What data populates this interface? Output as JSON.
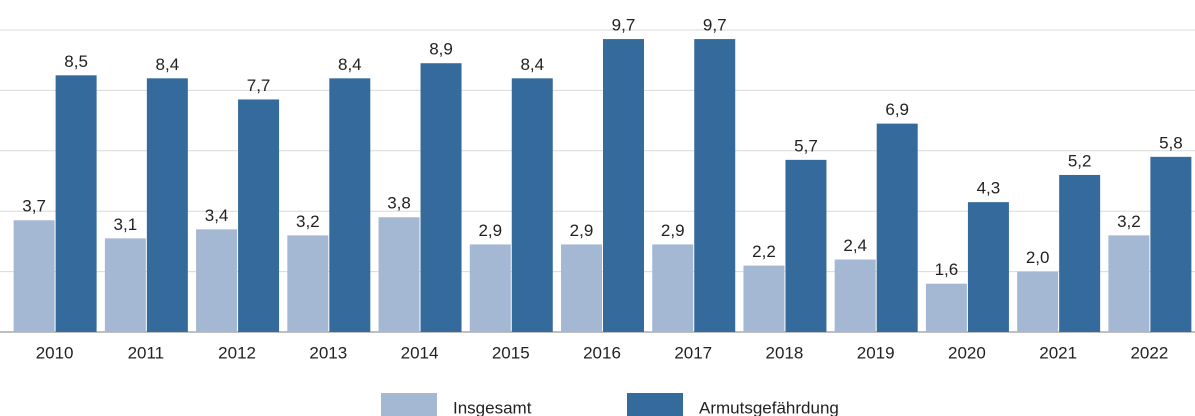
{
  "chart_data": {
    "type": "bar",
    "categories": [
      "2010",
      "2011",
      "2012",
      "2013",
      "2014",
      "2015",
      "2016",
      "2017",
      "2018",
      "2019",
      "2020",
      "2021",
      "2022"
    ],
    "series": [
      {
        "name": "Insgesamt",
        "color": "#a5b8d3",
        "values": [
          3.7,
          3.1,
          3.4,
          3.2,
          3.8,
          2.9,
          2.9,
          2.9,
          2.2,
          2.4,
          1.6,
          2.0,
          3.2
        ],
        "value_labels": [
          "3,7",
          "3,1",
          "3,4",
          "3,2",
          "3,8",
          "2,9",
          "2,9",
          "2,9",
          "2,2",
          "2,4",
          "1,6",
          "2,0",
          "3,2"
        ]
      },
      {
        "name": "Armutsgefährdung",
        "color": "#356b9c",
        "values": [
          8.5,
          8.4,
          7.7,
          8.4,
          8.9,
          8.4,
          9.7,
          9.7,
          5.7,
          6.9,
          4.3,
          5.2,
          5.8
        ],
        "value_labels": [
          "8,5",
          "8,4",
          "7,7",
          "8,4",
          "8,9",
          "8,4",
          "9,7",
          "9,7",
          "5,7",
          "6,9",
          "4,3",
          "5,2",
          "5,8"
        ]
      }
    ],
    "ylim": [
      0,
      10
    ],
    "yticks": [
      0,
      2,
      4,
      6,
      8,
      10
    ],
    "grid": true
  }
}
